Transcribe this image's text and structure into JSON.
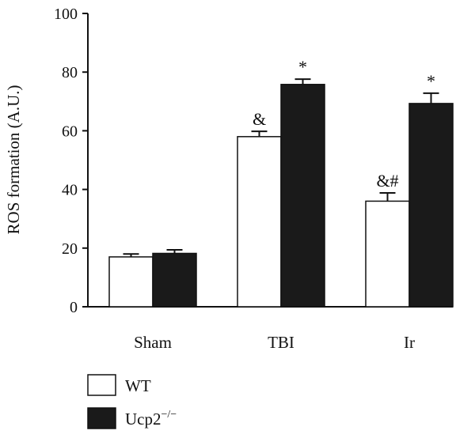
{
  "chart_data": {
    "type": "bar",
    "title": "",
    "xlabel": "",
    "ylabel": "ROS formation (A.U.)",
    "ylim": [
      0,
      100
    ],
    "yticks": [
      0,
      20,
      40,
      60,
      80,
      100
    ],
    "categories": [
      "Sham",
      "TBI",
      "Ir"
    ],
    "series": [
      {
        "name": "WT",
        "color": "#ffffff",
        "values": [
          17,
          58,
          36
        ],
        "errors": [
          1.0,
          1.8,
          2.8
        ],
        "annotations": [
          "",
          "&",
          "&#"
        ]
      },
      {
        "name": "Ucp2",
        "name_superscript": "−/−",
        "color": "#1a1a1a",
        "values": [
          18.2,
          75.8,
          69.3
        ],
        "errors": [
          1.2,
          1.8,
          3.5
        ],
        "annotations": [
          "",
          "*",
          "*"
        ]
      }
    ],
    "legend_position": "bottom-left"
  }
}
